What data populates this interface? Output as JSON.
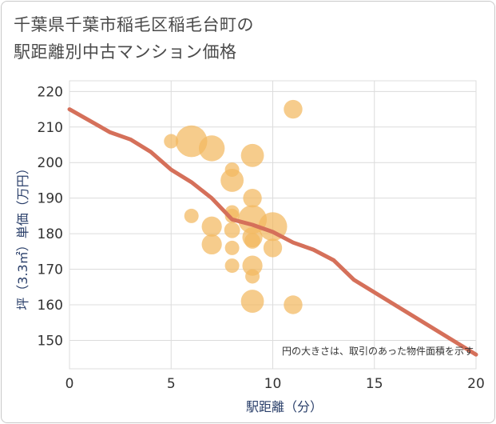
{
  "title_lines": [
    "千葉県千葉市稲毛区稲毛台町の",
    "駅距離別中古マンション価格"
  ],
  "chart_data": {
    "type": "scatter",
    "title": "千葉県千葉市稲毛区稲毛台町の駅距離別中古マンション価格",
    "xlabel": "駅距離（分）",
    "ylabel": "坪（3.3㎡）単価（万円）",
    "xlim": [
      0,
      20
    ],
    "ylim": [
      142,
      223
    ],
    "xticks": [
      0,
      5,
      10,
      15,
      20
    ],
    "yticks": [
      150,
      160,
      170,
      180,
      190,
      200,
      210,
      220
    ],
    "grid": true,
    "note": "円の大きさは、取引のあった物件面積を示す",
    "colors": {
      "bubble": "#f3b95f",
      "trend": "#d5705a",
      "grid": "#dcdcdc"
    },
    "points": [
      {
        "x": 5,
        "y": 206,
        "size": 1.0
      },
      {
        "x": 6,
        "y": 206,
        "size": 2.2
      },
      {
        "x": 6,
        "y": 185,
        "size": 1.0
      },
      {
        "x": 7,
        "y": 204,
        "size": 1.8
      },
      {
        "x": 7,
        "y": 182,
        "size": 1.4
      },
      {
        "x": 7,
        "y": 177,
        "size": 1.4
      },
      {
        "x": 8,
        "y": 198,
        "size": 1.0
      },
      {
        "x": 8,
        "y": 195,
        "size": 1.6
      },
      {
        "x": 8,
        "y": 186,
        "size": 1.0
      },
      {
        "x": 8,
        "y": 185,
        "size": 1.0
      },
      {
        "x": 8,
        "y": 181,
        "size": 1.1
      },
      {
        "x": 8,
        "y": 176,
        "size": 1.0
      },
      {
        "x": 8,
        "y": 171,
        "size": 1.0
      },
      {
        "x": 9,
        "y": 202,
        "size": 1.6
      },
      {
        "x": 9,
        "y": 190,
        "size": 1.3
      },
      {
        "x": 9,
        "y": 184,
        "size": 2.0
      },
      {
        "x": 9,
        "y": 179,
        "size": 1.4
      },
      {
        "x": 9,
        "y": 178,
        "size": 1.1
      },
      {
        "x": 9,
        "y": 171,
        "size": 1.4
      },
      {
        "x": 9,
        "y": 168,
        "size": 1.0
      },
      {
        "x": 9,
        "y": 161,
        "size": 1.6
      },
      {
        "x": 10,
        "y": 182,
        "size": 2.0
      },
      {
        "x": 10,
        "y": 176,
        "size": 1.3
      },
      {
        "x": 11,
        "y": 215,
        "size": 1.3
      },
      {
        "x": 11,
        "y": 160,
        "size": 1.3
      }
    ],
    "trend": [
      {
        "x": 0,
        "y": 215
      },
      {
        "x": 2,
        "y": 208.5
      },
      {
        "x": 3,
        "y": 206.5
      },
      {
        "x": 4,
        "y": 203
      },
      {
        "x": 5,
        "y": 198
      },
      {
        "x": 6,
        "y": 194.5
      },
      {
        "x": 7,
        "y": 190
      },
      {
        "x": 8,
        "y": 184
      },
      {
        "x": 9,
        "y": 182.5
      },
      {
        "x": 10,
        "y": 180.5
      },
      {
        "x": 11,
        "y": 177.5
      },
      {
        "x": 12,
        "y": 175.5
      },
      {
        "x": 13,
        "y": 172.5
      },
      {
        "x": 14,
        "y": 167
      },
      {
        "x": 20,
        "y": 146
      }
    ]
  }
}
